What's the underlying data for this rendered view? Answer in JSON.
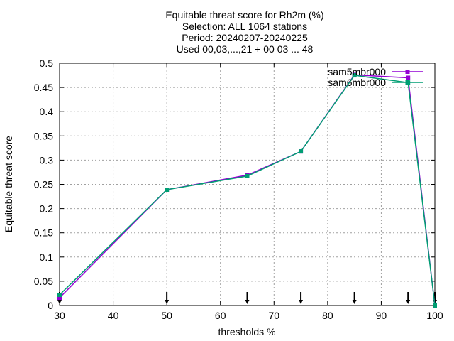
{
  "chart_data": {
    "type": "line",
    "title_lines": [
      "Equitable threat score  for Rh2m (%)",
      "Selection: ALL   1064 stations",
      "Period: 20240207-20240225",
      "Used 00,03,...,21 + 00 03 ... 48"
    ],
    "xlabel": "thresholds %",
    "ylabel": "Equitable threat score",
    "xlim": [
      30,
      100
    ],
    "ylim": [
      0,
      0.5
    ],
    "xticks": [
      30,
      40,
      50,
      60,
      70,
      80,
      90,
      100
    ],
    "yticks": [
      0,
      0.05,
      0.1,
      0.15,
      0.2,
      0.25,
      0.3,
      0.35,
      0.4,
      0.45,
      0.5
    ],
    "grid": true,
    "legend_position": "top-right",
    "x": [
      30,
      50,
      65,
      75,
      85,
      95,
      100
    ],
    "series": [
      {
        "name": "sam5mbr000",
        "color": "#9400d3",
        "marker": "square",
        "values": [
          0.016,
          0.239,
          0.269,
          0.318,
          0.476,
          0.47,
          0.0
        ]
      },
      {
        "name": "sam6mbr000",
        "color": "#009e73",
        "marker": "square",
        "values": [
          0.022,
          0.239,
          0.267,
          0.318,
          0.475,
          0.46,
          0.0
        ]
      }
    ],
    "arrow_markers_x": [
      30,
      50,
      65,
      75,
      85,
      95,
      100
    ]
  }
}
